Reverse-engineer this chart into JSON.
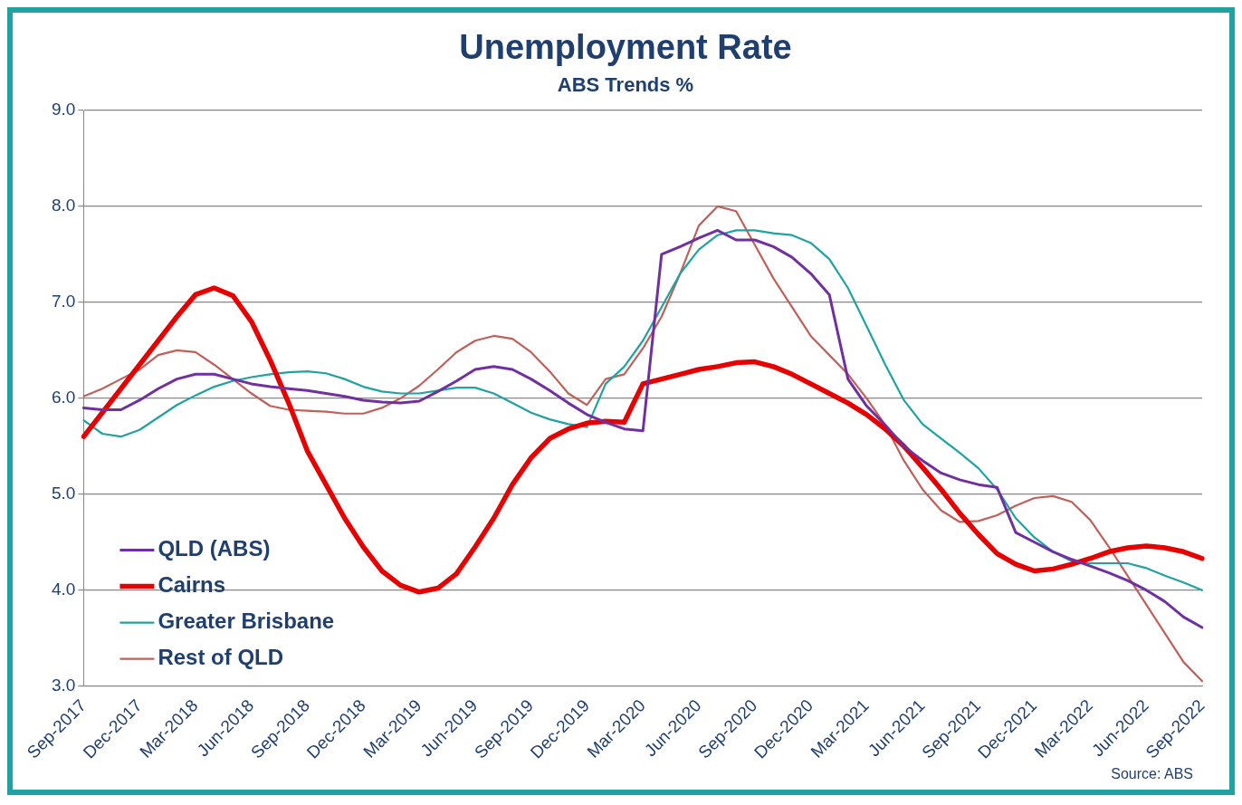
{
  "chart_data": {
    "type": "line",
    "title": "Unemployment Rate",
    "subtitle": "ABS Trends %",
    "categories": [
      "Sep-2017",
      null,
      null,
      "Dec-2017",
      null,
      null,
      "Mar-2018",
      null,
      null,
      "Jun-2018",
      null,
      null,
      "Sep-2018",
      null,
      null,
      "Dec-2018",
      null,
      null,
      "Mar-2019",
      null,
      null,
      "Jun-2019",
      null,
      null,
      "Sep-2019",
      null,
      null,
      "Dec-2019",
      null,
      null,
      "Mar-2020",
      null,
      null,
      "Jun-2020",
      null,
      null,
      "Sep-2020",
      null,
      null,
      "Dec-2020",
      null,
      null,
      "Mar-2021",
      null,
      null,
      "Jun-2021",
      null,
      null,
      "Sep-2021",
      null,
      null,
      "Dec-2021",
      null,
      null,
      "Mar-2022",
      null,
      null,
      "Jun-2022",
      null,
      null,
      "Sep-2022"
    ],
    "series": [
      {
        "name": "QLD (ABS)",
        "color": "#7030a0",
        "values": [
          5.9,
          5.88,
          5.88,
          5.98,
          6.1,
          6.2,
          6.25,
          6.25,
          6.2,
          6.15,
          6.12,
          6.1,
          6.08,
          6.05,
          6.02,
          5.98,
          5.96,
          5.95,
          5.97,
          6.07,
          6.18,
          6.3,
          6.33,
          6.3,
          6.2,
          6.08,
          5.95,
          5.83,
          5.75,
          5.68,
          5.66,
          7.5,
          7.58,
          7.67,
          7.75,
          7.65,
          7.65,
          7.58,
          7.47,
          7.3,
          7.08,
          6.2,
          5.92,
          5.72,
          5.5,
          5.35,
          5.22,
          5.15,
          5.1,
          5.07,
          4.6,
          4.5,
          4.4,
          4.32,
          4.25,
          4.18,
          4.1,
          4.0,
          3.88,
          3.72,
          3.61
        ]
      },
      {
        "name": "Cairns",
        "color": "#e60000",
        "values": [
          5.6,
          5.85,
          6.1,
          6.35,
          6.6,
          6.85,
          7.08,
          7.15,
          7.07,
          6.8,
          6.4,
          5.95,
          5.45,
          5.1,
          4.75,
          4.45,
          4.2,
          4.05,
          3.98,
          4.02,
          4.17,
          4.45,
          4.75,
          5.1,
          5.38,
          5.58,
          5.68,
          5.74,
          5.76,
          5.75,
          6.15,
          6.2,
          6.25,
          6.3,
          6.33,
          6.37,
          6.38,
          6.33,
          6.25,
          6.15,
          6.05,
          5.95,
          5.83,
          5.68,
          5.5,
          5.28,
          5.05,
          4.8,
          4.58,
          4.38,
          4.27,
          4.2,
          4.22,
          4.27,
          4.33,
          4.4,
          4.44,
          4.46,
          4.44,
          4.4,
          4.33
        ]
      },
      {
        "name": "Greater Brisbane",
        "color": "#1fa3a0",
        "values": [
          5.77,
          5.63,
          5.6,
          5.67,
          5.8,
          5.93,
          6.03,
          6.12,
          6.18,
          6.22,
          6.25,
          6.27,
          6.28,
          6.26,
          6.2,
          6.12,
          6.07,
          6.05,
          6.05,
          6.08,
          6.11,
          6.11,
          6.05,
          5.95,
          5.85,
          5.78,
          5.73,
          5.7,
          6.15,
          6.33,
          6.6,
          6.95,
          7.3,
          7.55,
          7.7,
          7.75,
          7.75,
          7.72,
          7.7,
          7.62,
          7.45,
          7.15,
          6.75,
          6.35,
          5.98,
          5.73,
          5.58,
          5.43,
          5.27,
          5.05,
          4.75,
          4.55,
          4.4,
          4.3,
          4.28,
          4.28,
          4.28,
          4.23,
          4.15,
          4.08,
          4.0
        ]
      },
      {
        "name": "Rest of QLD",
        "color": "#c0605a",
        "values": [
          6.02,
          6.1,
          6.2,
          6.3,
          6.45,
          6.5,
          6.48,
          6.35,
          6.2,
          6.05,
          5.92,
          5.88,
          5.87,
          5.86,
          5.84,
          5.84,
          5.9,
          6.0,
          6.13,
          6.3,
          6.48,
          6.6,
          6.65,
          6.62,
          6.48,
          6.28,
          6.05,
          5.93,
          6.2,
          6.25,
          6.52,
          6.85,
          7.3,
          7.8,
          8.0,
          7.95,
          7.6,
          7.25,
          6.95,
          6.65,
          6.45,
          6.25,
          6.0,
          5.72,
          5.35,
          5.05,
          4.83,
          4.71,
          4.72,
          4.78,
          4.88,
          4.96,
          4.98,
          4.92,
          4.73,
          4.45,
          4.15,
          3.85,
          3.55,
          3.25,
          3.05
        ]
      }
    ],
    "ylim": [
      3,
      9
    ],
    "yticks": [
      {
        "value": 3,
        "label": "3.0"
      },
      {
        "value": 4,
        "label": "4.0"
      },
      {
        "value": 5,
        "label": "5.0"
      },
      {
        "value": 6,
        "label": "6.0"
      },
      {
        "value": 7,
        "label": "7.0"
      },
      {
        "value": 8,
        "label": "8.0"
      },
      {
        "value": 9,
        "label": "9.0"
      }
    ],
    "grid": "y",
    "legend": "bottom left",
    "marker": "none",
    "line_style": "solid",
    "annotations": [
      "Source: ABS"
    ]
  }
}
